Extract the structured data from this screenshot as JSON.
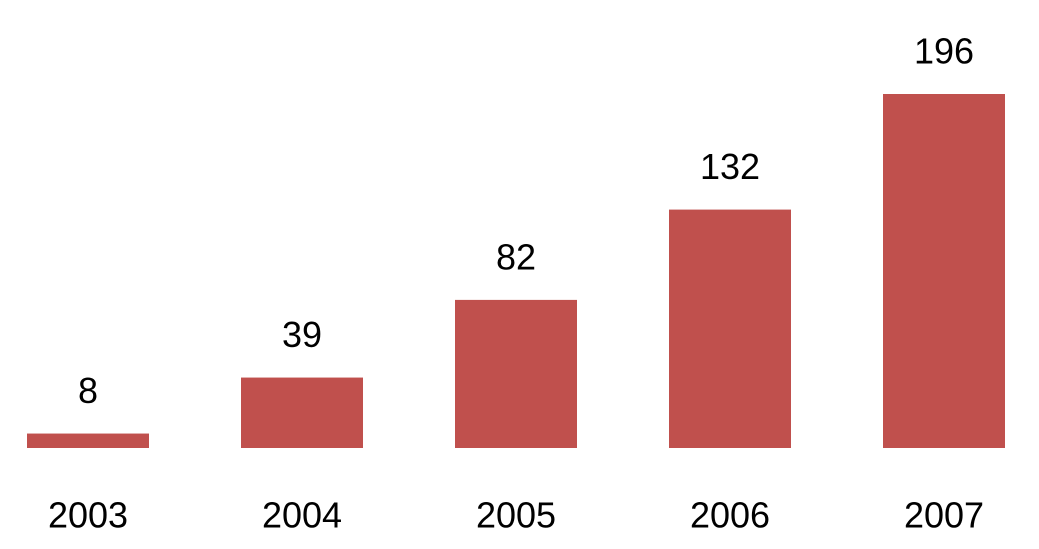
{
  "chart_data": {
    "type": "bar",
    "categories": [
      "2003",
      "2004",
      "2005",
      "2006",
      "2007"
    ],
    "values": [
      8,
      39,
      82,
      132,
      196
    ],
    "color": "#c0504d"
  }
}
